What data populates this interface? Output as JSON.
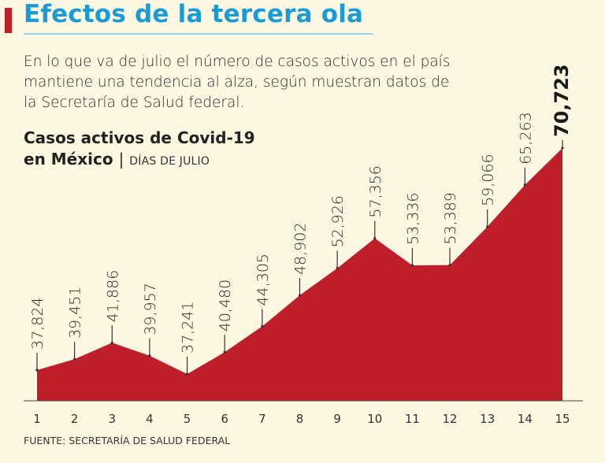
{
  "headline": "Efectos de la tercera ola",
  "intro": "En lo que va de julio el número de casos activos en el país mantiene una tendencia al alza, según muestran datos de la Secretaría de Salud federal.",
  "chart_title_line1": "Casos activos de Covid-19",
  "chart_title_line2": "en México",
  "chart_separator": "|",
  "chart_subtitle": "DÍAS DE JULIO",
  "source": "FUENTE: SECRETARÍA DE SALUD FEDERAL",
  "colors": {
    "area": "#bf1f2b",
    "headline": "#1a9bd6",
    "background": "#fdf8e1"
  },
  "chart_data": {
    "type": "area",
    "x": [
      "1",
      "2",
      "3",
      "4",
      "5",
      "6",
      "7",
      "8",
      "9",
      "10",
      "11",
      "12",
      "13",
      "14",
      "15"
    ],
    "values": [
      37824,
      39451,
      41886,
      39957,
      37241,
      40480,
      44305,
      48902,
      52926,
      57356,
      53336,
      53389,
      59066,
      65263,
      70723
    ],
    "labels": [
      "37,824",
      "39,451",
      "41,886",
      "39,957",
      "37,241",
      "40,480",
      "44,305",
      "48,902",
      "52,926",
      "57,356",
      "53,336",
      "53,389",
      "59,066",
      "65,263",
      "70,723"
    ],
    "title": "Casos activos de Covid-19 en México",
    "subtitle": "DÍAS DE JULIO",
    "grid": false,
    "legend": "none"
  }
}
